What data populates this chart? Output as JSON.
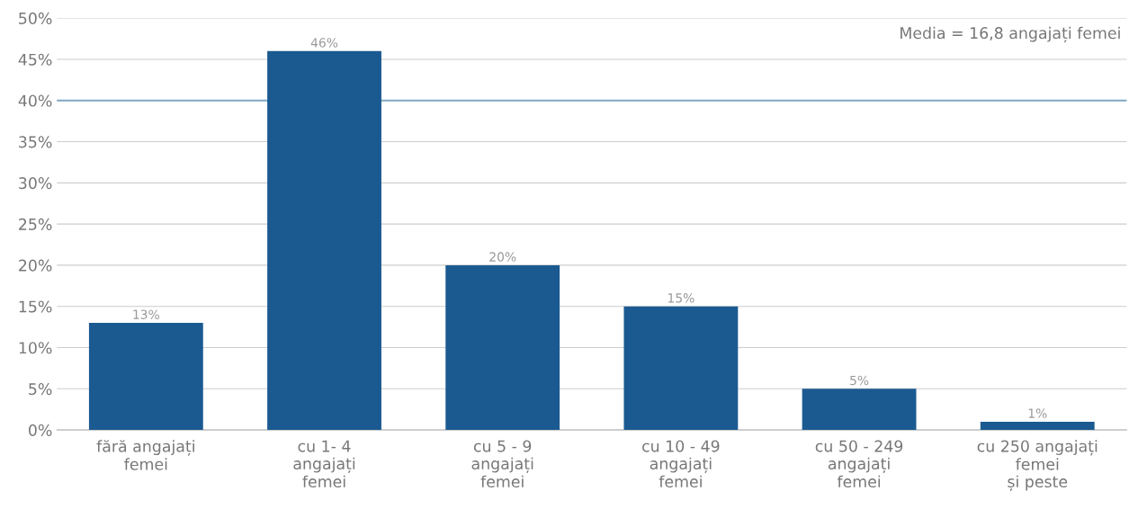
{
  "chart_data": {
    "type": "bar",
    "categories": [
      "fără angajați\nfemei",
      "cu 1- 4\nangajați\nfemei",
      "cu 5 - 9\nangajați\nfemei",
      "cu 10 - 49\nangajați\nfemei",
      "cu 50 - 249\nangajați\nfemei",
      "cu 250 angajați\nfemei\nși peste"
    ],
    "values": [
      13,
      46,
      20,
      15,
      5,
      1
    ],
    "value_labels": [
      "13%",
      "46%",
      "20%",
      "15%",
      "5%",
      "1%"
    ],
    "color": "#1b5a91",
    "ylim": [
      0,
      50
    ],
    "yticks": [
      {
        "value": 0,
        "label": "0%"
      },
      {
        "value": 5,
        "label": "5%"
      },
      {
        "value": 10,
        "label": "10%"
      },
      {
        "value": 15,
        "label": "15%"
      },
      {
        "value": 20,
        "label": "20%"
      },
      {
        "value": 25,
        "label": "25%"
      },
      {
        "value": 30,
        "label": "30%"
      },
      {
        "value": 35,
        "label": "35%"
      },
      {
        "value": 40,
        "label": "40%"
      },
      {
        "value": 45,
        "label": "45%"
      },
      {
        "value": 50,
        "label": "50%"
      }
    ],
    "grid": "y",
    "ref_lines": [
      {
        "axis": "y",
        "value": 40,
        "color": "#7fa9c4"
      }
    ],
    "annotations": [
      "Media = 16,8 angajați femei"
    ]
  }
}
